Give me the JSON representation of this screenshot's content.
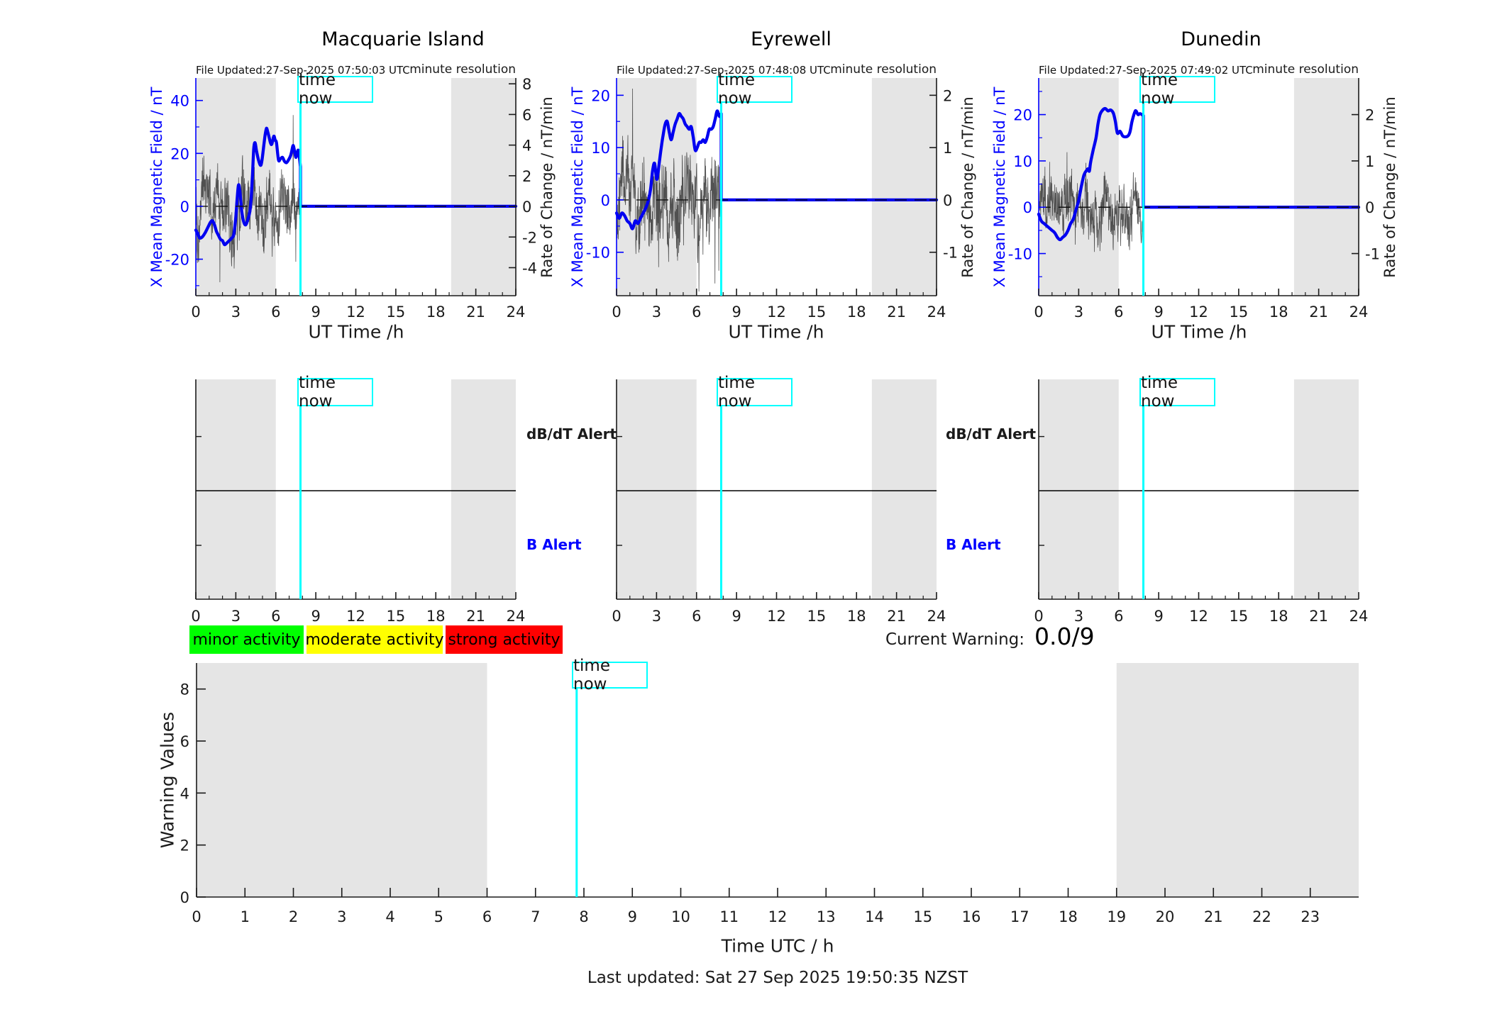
{
  "meta": {
    "last_updated": "Last updated: Sat 27 Sep 2025 19:50:35 NZST"
  },
  "labels": {
    "time_now": "time now",
    "minute_resolution": "minute resolution",
    "ut_time": "UT Time /h",
    "left_axis": "X Mean Magnetic Field / nT",
    "right_axis": "Rate of Change / nT/min",
    "db_dt_alert": "dB/dT Alert",
    "b_alert": "B Alert"
  },
  "current_warning": {
    "label": "Current Warning:",
    "value": "0.0/9"
  },
  "legend": [
    {
      "label": "minor activity",
      "color": "#00ff00"
    },
    {
      "label": "moderate activity",
      "color": "#ffff00"
    },
    {
      "label": "strong activity",
      "color": "#ff0000"
    }
  ],
  "colors": {
    "field_line": "#0000f0",
    "axis_blue": "#0000ff",
    "time_now_line": "#00ffff",
    "night_shade": "#e5e5e5",
    "noise_trace": "#3f3f3f",
    "zero_dash": "#111111",
    "spine": "#1a1a1a",
    "legend_minor": "#00ff00",
    "legend_moderate": "#ffff00",
    "legend_strong": "#ff0000"
  },
  "chart_data": [
    {
      "type": "line",
      "station": "Macquarie Island",
      "file_updated": "File Updated:27-Sep-2025 07:50:03 UTC",
      "resolution": "minute resolution",
      "x": {
        "label": "UT Time /h",
        "lim": [
          0,
          24
        ],
        "major_ticks": [
          0,
          3,
          6,
          9,
          12,
          15,
          18,
          21,
          24
        ],
        "minor_step": 1
      },
      "y_left": {
        "label": "X Mean Magnetic Field / nT",
        "lim": [
          -33.8,
          48.5
        ],
        "ticks": [
          -20,
          0,
          20,
          40
        ],
        "minor_ticks": [
          -30,
          -10,
          10,
          30
        ]
      },
      "y_right": {
        "label": "Rate of Change / nT/min",
        "lim": [
          -5.83,
          8.38
        ],
        "ticks": [
          -4,
          -2,
          0,
          2,
          4,
          6,
          8
        ]
      },
      "night_shading_h": [
        [
          0,
          6
        ],
        [
          19.15,
          24
        ]
      ],
      "time_now_h": 7.85,
      "flat_after_time_now_nT": 0,
      "series": [
        {
          "name": "X mean magnetic field",
          "units": "nT",
          "points_h_nT": [
            [
              0,
              -9
            ],
            [
              0.15,
              -10.5
            ],
            [
              0.3,
              -12
            ],
            [
              0.5,
              -11.5
            ],
            [
              0.7,
              -10
            ],
            [
              0.9,
              -8
            ],
            [
              1.1,
              -6
            ],
            [
              1.25,
              -5.5
            ],
            [
              1.4,
              -7
            ],
            [
              1.55,
              -9.5
            ],
            [
              1.7,
              -11
            ],
            [
              1.85,
              -12.5
            ],
            [
              2.0,
              -13
            ],
            [
              2.15,
              -14.5
            ],
            [
              2.3,
              -14
            ],
            [
              2.5,
              -13
            ],
            [
              2.7,
              -12
            ],
            [
              2.85,
              -10.5
            ],
            [
              3.0,
              -4
            ],
            [
              3.1,
              3
            ],
            [
              3.2,
              8
            ],
            [
              3.3,
              6
            ],
            [
              3.45,
              -2
            ],
            [
              3.6,
              -6
            ],
            [
              3.75,
              -7
            ],
            [
              3.9,
              -5
            ],
            [
              4.05,
              -2
            ],
            [
              4.15,
              3
            ],
            [
              4.25,
              12
            ],
            [
              4.35,
              22
            ],
            [
              4.45,
              24
            ],
            [
              4.55,
              21
            ],
            [
              4.7,
              17.5
            ],
            [
              4.85,
              15.5
            ],
            [
              4.95,
              17
            ],
            [
              5.1,
              23
            ],
            [
              5.2,
              27
            ],
            [
              5.3,
              29.5
            ],
            [
              5.4,
              28
            ],
            [
              5.5,
              26
            ],
            [
              5.6,
              24
            ],
            [
              5.7,
              23.5
            ],
            [
              5.85,
              26.5
            ],
            [
              5.95,
              25
            ],
            [
              6.05,
              24
            ],
            [
              6.2,
              17.5
            ],
            [
              6.35,
              18
            ],
            [
              6.5,
              18.5
            ],
            [
              6.65,
              17
            ],
            [
              6.8,
              16.5
            ],
            [
              6.95,
              17.5
            ],
            [
              7.1,
              19
            ],
            [
              7.2,
              21
            ],
            [
              7.3,
              23
            ],
            [
              7.4,
              21
            ],
            [
              7.5,
              18.5
            ],
            [
              7.6,
              20
            ],
            [
              7.7,
              21
            ],
            [
              7.85,
              15
            ]
          ]
        },
        {
          "name": "rate of change (minute resolution)",
          "units": "nT/min",
          "style": "noise",
          "amplitude_units": 2.0,
          "seed": 101,
          "samples": 471
        }
      ]
    },
    {
      "type": "line",
      "station": "Eyrewell",
      "file_updated": "File Updated:27-Sep-2025 07:48:08 UTC",
      "resolution": "minute resolution",
      "x": {
        "label": "UT Time /h",
        "lim": [
          0,
          24
        ],
        "major_ticks": [
          0,
          3,
          6,
          9,
          12,
          15,
          18,
          21,
          24
        ],
        "minor_step": 1
      },
      "y_left": {
        "label": "X Mean Magnetic Field / nT",
        "lim": [
          -18.3,
          23.3
        ],
        "ticks": [
          -10,
          0,
          10,
          20
        ],
        "minor_ticks": [
          -15,
          -5,
          5,
          15
        ]
      },
      "y_right": {
        "label": "Rate of Change / nT/min",
        "lim": [
          -1.83,
          2.33
        ],
        "ticks": [
          -1,
          0,
          1,
          2
        ]
      },
      "night_shading_h": [
        [
          0,
          6
        ],
        [
          19.15,
          24
        ]
      ],
      "time_now_h": 7.85,
      "flat_after_time_now_nT": 0,
      "series": [
        {
          "name": "X mean magnetic field",
          "units": "nT",
          "points_h_nT": [
            [
              0,
              -2.5
            ],
            [
              0.2,
              -3.5
            ],
            [
              0.4,
              -2.5
            ],
            [
              0.6,
              -3
            ],
            [
              0.8,
              -4
            ],
            [
              1.0,
              -4.5
            ],
            [
              1.2,
              -5.5
            ],
            [
              1.4,
              -4
            ],
            [
              1.6,
              -4.5
            ],
            [
              1.8,
              -3.5
            ],
            [
              2.0,
              -2.5
            ],
            [
              2.2,
              -1.5
            ],
            [
              2.4,
              0
            ],
            [
              2.55,
              2
            ],
            [
              2.7,
              5.5
            ],
            [
              2.85,
              7
            ],
            [
              3.0,
              4
            ],
            [
              3.1,
              5
            ],
            [
              3.2,
              7
            ],
            [
              3.35,
              10
            ],
            [
              3.5,
              12.5
            ],
            [
              3.65,
              14.5
            ],
            [
              3.8,
              15
            ],
            [
              3.95,
              13
            ],
            [
              4.1,
              11.5
            ],
            [
              4.25,
              13
            ],
            [
              4.4,
              14.5
            ],
            [
              4.55,
              15.5
            ],
            [
              4.7,
              16.5
            ],
            [
              4.85,
              16
            ],
            [
              5.0,
              15.5
            ],
            [
              5.15,
              14.5
            ],
            [
              5.3,
              14
            ],
            [
              5.45,
              13.5
            ],
            [
              5.6,
              14
            ],
            [
              5.75,
              12
            ],
            [
              5.9,
              9.5
            ],
            [
              6.05,
              10
            ],
            [
              6.2,
              11
            ],
            [
              6.35,
              11
            ],
            [
              6.5,
              11.5
            ],
            [
              6.65,
              11
            ],
            [
              6.8,
              12
            ],
            [
              6.95,
              13.5
            ],
            [
              7.1,
              13.5
            ],
            [
              7.25,
              14
            ],
            [
              7.4,
              15.5
            ],
            [
              7.55,
              17
            ],
            [
              7.7,
              16
            ],
            [
              7.85,
              16.5
            ]
          ]
        },
        {
          "name": "rate of change (minute resolution)",
          "units": "nT/min",
          "style": "noise",
          "amplitude_units": 0.7,
          "seed": 202,
          "samples": 471
        }
      ]
    },
    {
      "type": "line",
      "station": "Dunedin",
      "file_updated": "File Updated:27-Sep-2025 07:49:02 UTC",
      "resolution": "minute resolution",
      "x": {
        "label": "UT Time /h",
        "lim": [
          0,
          24
        ],
        "major_ticks": [
          0,
          3,
          6,
          9,
          12,
          15,
          18,
          21,
          24
        ],
        "minor_step": 1
      },
      "y_left": {
        "label": "X Mean Magnetic Field / nT",
        "lim": [
          -19.1,
          27.9
        ],
        "ticks": [
          -10,
          0,
          10,
          20
        ],
        "minor_ticks": [
          -15,
          -5,
          5,
          15,
          25
        ]
      },
      "y_right": {
        "label": "Rate of Change / nT/min",
        "lim": [
          -1.91,
          2.79
        ],
        "ticks": [
          -1,
          0,
          1,
          2
        ]
      },
      "night_shading_h": [
        [
          0,
          6
        ],
        [
          19.15,
          24
        ]
      ],
      "time_now_h": 7.85,
      "flat_after_time_now_nT": 0,
      "series": [
        {
          "name": "X mean magnetic field",
          "units": "nT",
          "points_h_nT": [
            [
              0,
              -1.5
            ],
            [
              0.2,
              -3
            ],
            [
              0.4,
              -3.5
            ],
            [
              0.6,
              -4
            ],
            [
              0.8,
              -4.5
            ],
            [
              1.0,
              -5
            ],
            [
              1.2,
              -5.5
            ],
            [
              1.4,
              -6.5
            ],
            [
              1.6,
              -7
            ],
            [
              1.8,
              -6.5
            ],
            [
              2.0,
              -6
            ],
            [
              2.2,
              -5
            ],
            [
              2.4,
              -3.5
            ],
            [
              2.6,
              -2.5
            ],
            [
              2.8,
              -0.5
            ],
            [
              3.0,
              1.5
            ],
            [
              3.2,
              4.5
            ],
            [
              3.4,
              7
            ],
            [
              3.6,
              8
            ],
            [
              3.7,
              8.3
            ],
            [
              3.8,
              7.8
            ],
            [
              3.9,
              9.8
            ],
            [
              4.1,
              12.5
            ],
            [
              4.3,
              15
            ],
            [
              4.45,
              18
            ],
            [
              4.6,
              20
            ],
            [
              4.8,
              21
            ],
            [
              5.0,
              21.3
            ],
            [
              5.2,
              20.8
            ],
            [
              5.4,
              21
            ],
            [
              5.6,
              20.3
            ],
            [
              5.75,
              18.5
            ],
            [
              5.9,
              16
            ],
            [
              6.1,
              16.4
            ],
            [
              6.3,
              15.4
            ],
            [
              6.5,
              15.2
            ],
            [
              6.7,
              15.4
            ],
            [
              6.85,
              16.3
            ],
            [
              7.0,
              18.5
            ],
            [
              7.2,
              20.5
            ],
            [
              7.3,
              20.8
            ],
            [
              7.45,
              20
            ],
            [
              7.6,
              20.2
            ],
            [
              7.85,
              19.8
            ]
          ]
        },
        {
          "name": "rate of change (minute resolution)",
          "units": "nT/min",
          "style": "noise",
          "amplitude_units": 0.55,
          "seed": 303,
          "samples": 471
        }
      ]
    },
    {
      "type": "alert-timeline",
      "station": "Macquarie Island",
      "row_labels": [
        "dB/dT Alert",
        "B Alert"
      ],
      "x": {
        "lim": [
          0,
          24
        ],
        "major_ticks": [
          0,
          3,
          6,
          9,
          12,
          15,
          18,
          21,
          24
        ],
        "minor_step": 1
      },
      "night_shading_h": [
        [
          0,
          6
        ],
        [
          19.15,
          24
        ]
      ],
      "time_now_h": 7.85,
      "db_dt_alerts": [],
      "b_alerts": []
    },
    {
      "type": "alert-timeline",
      "station": "Eyrewell",
      "row_labels": [
        "dB/dT Alert",
        "B Alert"
      ],
      "x": {
        "lim": [
          0,
          24
        ],
        "major_ticks": [
          0,
          3,
          6,
          9,
          12,
          15,
          18,
          21,
          24
        ],
        "minor_step": 1
      },
      "night_shading_h": [
        [
          0,
          6
        ],
        [
          19.15,
          24
        ]
      ],
      "time_now_h": 7.85,
      "db_dt_alerts": [],
      "b_alerts": []
    },
    {
      "type": "alert-timeline",
      "station": "Dunedin",
      "row_labels": [
        "dB/dT Alert",
        "B Alert"
      ],
      "x": {
        "lim": [
          0,
          24
        ],
        "major_ticks": [
          0,
          3,
          6,
          9,
          12,
          15,
          18,
          21,
          24
        ],
        "minor_step": 1
      },
      "night_shading_h": [
        [
          0,
          6
        ],
        [
          19.15,
          24
        ]
      ],
      "time_now_h": 7.85,
      "db_dt_alerts": [],
      "b_alerts": []
    },
    {
      "type": "line",
      "name": "warning-values",
      "ylabel": "Warning Values",
      "xlabel": "Time UTC / h",
      "ylim": [
        0,
        9
      ],
      "yticks": [
        0,
        2,
        4,
        6,
        8
      ],
      "xlim": [
        0,
        24
      ],
      "xticks": [
        0,
        1,
        2,
        3,
        4,
        5,
        6,
        7,
        8,
        9,
        10,
        11,
        12,
        13,
        14,
        15,
        16,
        17,
        18,
        19,
        20,
        21,
        22,
        23
      ],
      "night_shading_h": [
        [
          0,
          6
        ],
        [
          19,
          24
        ]
      ],
      "time_now_h": 7.85,
      "series": [],
      "current_warning_value": "0.0/9",
      "warning_scale_max": 9
    }
  ]
}
